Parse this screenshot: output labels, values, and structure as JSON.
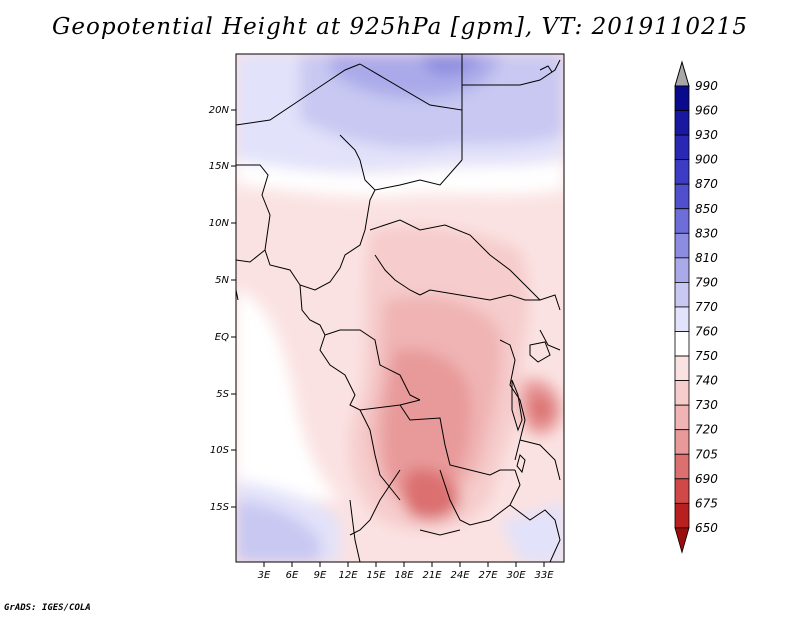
{
  "title": "Geopotential Height at 925hPa [gpm], VT: 2019110215",
  "footer": "GrADS: IGES/COLA",
  "map": {
    "lat_labels": [
      "20N",
      "15N",
      "10N",
      "5N",
      "EQ",
      "5S",
      "10S",
      "15S"
    ],
    "lon_labels": [
      "3E",
      "6E",
      "9E",
      "12E",
      "15E",
      "18E",
      "21E",
      "24E",
      "27E",
      "30E",
      "33E"
    ]
  },
  "colorbar": {
    "levels": [
      "990",
      "960",
      "930",
      "900",
      "870",
      "850",
      "830",
      "810",
      "790",
      "770",
      "760",
      "750",
      "740",
      "730",
      "720",
      "705",
      "690",
      "675",
      "650"
    ],
    "colors": {
      "over": "#a8a8a8",
      "990": "#0a0a8c",
      "960": "#1818a0",
      "930": "#2828b4",
      "900": "#3c3cc4",
      "870": "#5050cc",
      "850": "#6e6ed8",
      "830": "#8c8ce0",
      "810": "#aaaaea",
      "790": "#c8c8f2",
      "770": "#e2e2fa",
      "760": "#ffffff",
      "750": "#fbe2e2",
      "740": "#f6cccc",
      "730": "#f0b4b4",
      "720": "#e89a9a",
      "705": "#dc7070",
      "690": "#d04848",
      "675": "#b82020",
      "650": "#9c0e0e"
    }
  }
}
